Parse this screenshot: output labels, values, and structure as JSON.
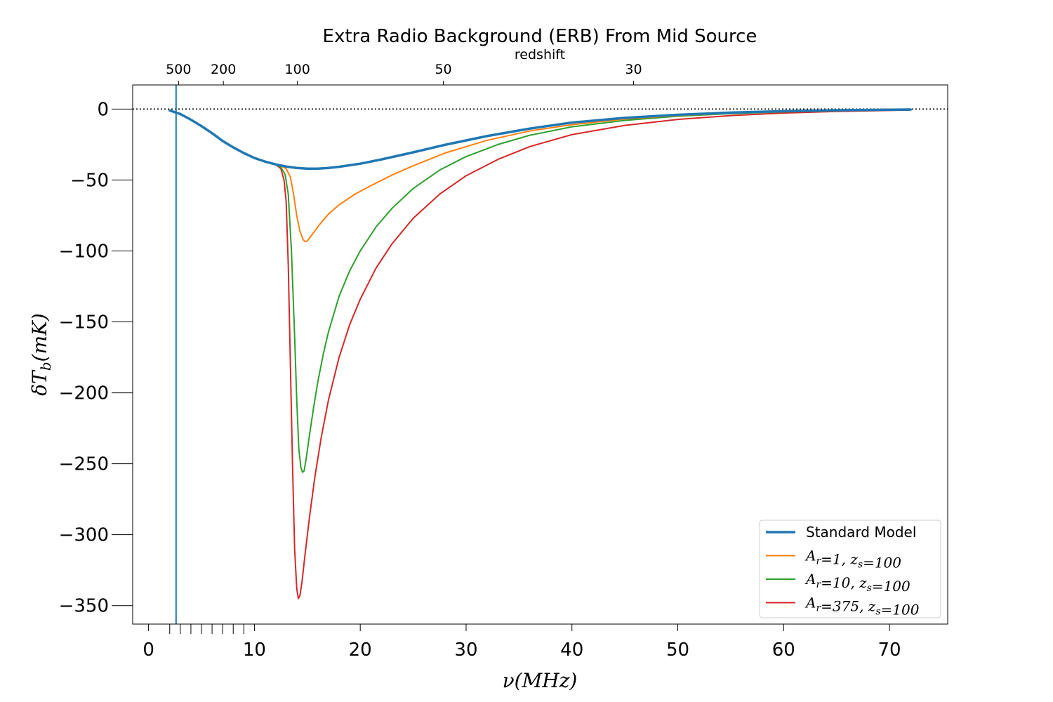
{
  "chart_data": {
    "type": "line",
    "title": "Extra Radio Background (ERB) From Mid Source",
    "xlabel": "ν(MHz)",
    "ylabel": "δT_b(mK)",
    "xlim": [
      -1.5,
      75.5
    ],
    "ylim": [
      -363,
      17
    ],
    "x_ticks": [
      0,
      10,
      20,
      30,
      40,
      50,
      60,
      70
    ],
    "x_tick_labels": [
      "0",
      "10",
      "20",
      "30",
      "40",
      "50",
      "60",
      "70"
    ],
    "x_minor_ticks": [
      2,
      3,
      4,
      5,
      6,
      7,
      8,
      9
    ],
    "y_ticks": [
      0,
      -50,
      -100,
      -150,
      -200,
      -250,
      -300,
      -350
    ],
    "y_tick_labels": [
      "0",
      "−50",
      "−100",
      "−150",
      "−200",
      "−250",
      "−300",
      "−350"
    ],
    "top_axis": {
      "label": "redshift",
      "ticks": [
        {
          "z": 500,
          "label": "500"
        },
        {
          "z": 200,
          "label": "200"
        },
        {
          "z": 100,
          "label": "100"
        },
        {
          "z": 50,
          "label": "50"
        },
        {
          "z": 30,
          "label": "30"
        }
      ]
    },
    "reference_lines": {
      "horizontal_dotted_y": 0,
      "vertical_x": 2.6
    },
    "legend": {
      "placement": "lower-right"
    },
    "grid": false,
    "series": [
      {
        "name": "Standard Model",
        "color": "#1f77b4",
        "linewidth": 3.5,
        "x": [
          2.0,
          3.0,
          4.0,
          5.0,
          6.0,
          7.0,
          8.0,
          9.0,
          10.0,
          11.0,
          12.0,
          13.0,
          14.0,
          15.0,
          16.0,
          17.0,
          18.0,
          20.0,
          22.0,
          25.0,
          28.0,
          32.0,
          36.0,
          40.0,
          45.0,
          50.0,
          55.0,
          60.0,
          65.0,
          72.0
        ],
        "y": [
          -1,
          -3.5,
          -7.5,
          -12,
          -17,
          -22.5,
          -27,
          -31,
          -34.5,
          -37,
          -39,
          -40.5,
          -41.5,
          -42,
          -42,
          -41.5,
          -40.7,
          -38.5,
          -35.5,
          -30.5,
          -25.2,
          -19,
          -13.8,
          -9.5,
          -6.2,
          -4,
          -2.5,
          -1.5,
          -0.8,
          -0.3
        ]
      },
      {
        "name": "A_r=1, z_s=100",
        "color": "#ff7f0e",
        "linewidth": 2,
        "x": [
          2.0,
          3.0,
          4.0,
          5.0,
          6.0,
          7.0,
          8.0,
          9.0,
          10.0,
          11.0,
          12.0,
          12.5,
          13.0,
          13.4,
          13.7,
          14.0,
          14.3,
          14.6,
          14.8,
          15.0,
          15.3,
          15.7,
          16.2,
          17.0,
          18.0,
          19.5,
          21.0,
          23.0,
          25.0,
          28.0,
          32.0,
          36.0,
          40.0,
          45.0,
          50.0,
          55.0,
          60.0,
          65.0,
          72.0
        ],
        "y": [
          -1,
          -3.5,
          -7.5,
          -12,
          -17,
          -22.5,
          -27,
          -31,
          -34.5,
          -37,
          -39,
          -40,
          -42,
          -48,
          -60,
          -75,
          -86,
          -92,
          -93.5,
          -93,
          -90,
          -86,
          -81,
          -74,
          -67.5,
          -60,
          -54,
          -46.5,
          -40,
          -31,
          -22,
          -15.5,
          -11,
          -7,
          -4.5,
          -2.8,
          -1.7,
          -1,
          -0.4
        ]
      },
      {
        "name": "A_r=10, z_s=100",
        "color": "#2ca02c",
        "linewidth": 2,
        "x": [
          2.0,
          3.0,
          4.0,
          5.0,
          6.0,
          7.0,
          8.0,
          9.0,
          10.0,
          11.0,
          12.0,
          12.5,
          12.9,
          13.2,
          13.5,
          13.8,
          14.0,
          14.2,
          14.4,
          14.55,
          14.7,
          14.9,
          15.2,
          15.6,
          16.0,
          16.5,
          17.0,
          18.0,
          19.0,
          20.0,
          21.5,
          23.0,
          25.0,
          27.5,
          30.0,
          33.0,
          36.0,
          40.0,
          45.0,
          50.0,
          55.0,
          60.0,
          65.0,
          72.0
        ],
        "y": [
          -1,
          -3.5,
          -7.5,
          -12,
          -17,
          -22.5,
          -27,
          -31,
          -34.5,
          -37,
          -39,
          -41,
          -46,
          -60,
          -100,
          -160,
          -205,
          -240,
          -253,
          -256,
          -255,
          -246,
          -230,
          -210,
          -192,
          -173,
          -157,
          -132,
          -114,
          -100,
          -83,
          -70,
          -56,
          -43,
          -33.5,
          -25,
          -18.5,
          -12.5,
          -8,
          -5,
          -3.2,
          -2,
          -1.2,
          -0.5
        ]
      },
      {
        "name": "A_r=375, z_s=100",
        "color": "#d62728",
        "linewidth": 2,
        "x": [
          2.0,
          3.0,
          4.0,
          5.0,
          6.0,
          7.0,
          8.0,
          9.0,
          10.0,
          11.0,
          12.0,
          12.5,
          12.8,
          13.0,
          13.2,
          13.4,
          13.6,
          13.8,
          14.0,
          14.15,
          14.3,
          14.5,
          14.8,
          15.2,
          15.7,
          16.3,
          17.0,
          18.0,
          19.0,
          20.0,
          21.5,
          23.0,
          25.0,
          27.5,
          30.0,
          33.0,
          36.0,
          40.0,
          45.0,
          50.0,
          55.0,
          60.0,
          65.0,
          72.0
        ],
        "y": [
          -1,
          -3.5,
          -7.5,
          -12,
          -17,
          -22.5,
          -27,
          -31,
          -34.5,
          -37,
          -39,
          -42,
          -50,
          -65,
          -110,
          -180,
          -250,
          -310,
          -338,
          -345,
          -343,
          -333,
          -313,
          -288,
          -260,
          -232,
          -205,
          -175,
          -152,
          -134,
          -112,
          -95,
          -77,
          -60,
          -47,
          -35.5,
          -26.5,
          -18,
          -11.5,
          -7.3,
          -4.6,
          -2.8,
          -1.7,
          -0.7
        ]
      }
    ]
  }
}
